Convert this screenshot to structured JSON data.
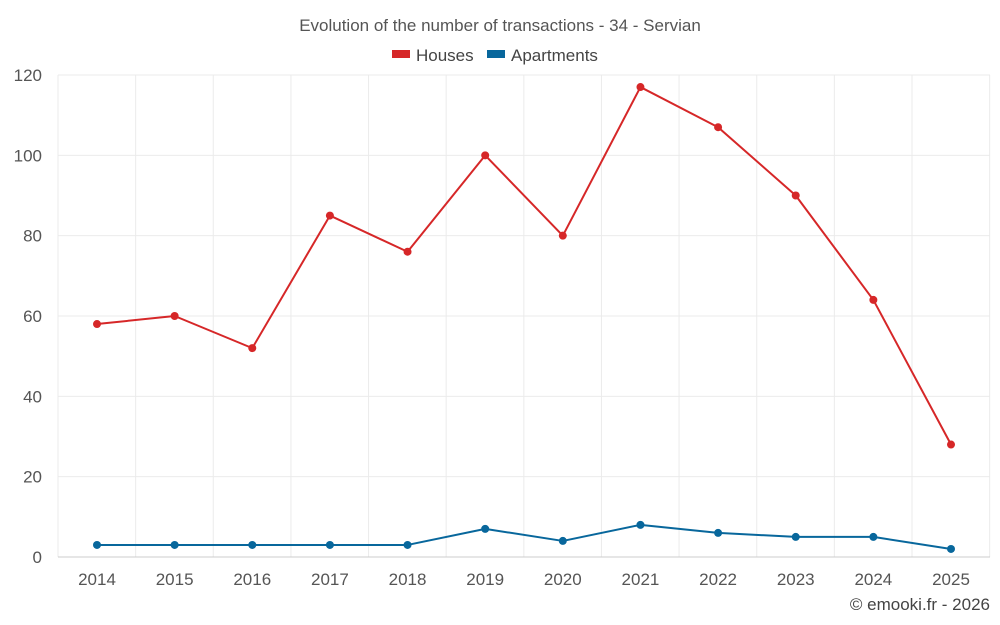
{
  "chart_data": {
    "type": "line",
    "title": "Evolution of the number of transactions - 34 - Servian",
    "categories": [
      "2014",
      "2015",
      "2016",
      "2017",
      "2018",
      "2019",
      "2020",
      "2021",
      "2022",
      "2023",
      "2024",
      "2025"
    ],
    "series": [
      {
        "name": "Houses",
        "color": "#d62728",
        "values": [
          58,
          60,
          52,
          85,
          76,
          100,
          80,
          117,
          107,
          90,
          64,
          28
        ]
      },
      {
        "name": "Apartments",
        "color": "#08679c",
        "values": [
          3,
          3,
          3,
          3,
          3,
          7,
          4,
          8,
          6,
          5,
          5,
          2
        ]
      }
    ],
    "ylim": [
      0,
      120
    ],
    "yticks": [
      0,
      20,
      40,
      60,
      80,
      100,
      120
    ],
    "xlabel": "",
    "ylabel": "",
    "legend_position": "top-center",
    "grid": true
  },
  "credit": "© emooki.fr - 2026"
}
